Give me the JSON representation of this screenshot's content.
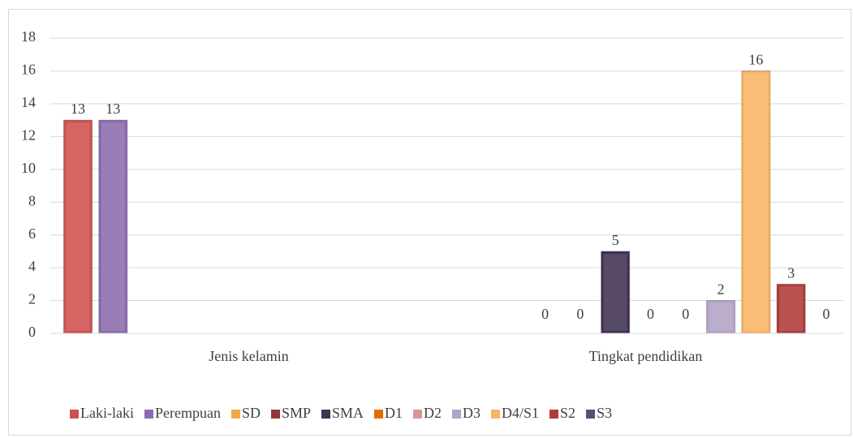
{
  "chart_data": {
    "type": "bar",
    "categories": [
      "Jenis kelamin",
      "Tingkat pendidikan"
    ],
    "series": [
      {
        "name": "Laki-laki",
        "color": "#d0504d",
        "values": [
          13,
          null
        ]
      },
      {
        "name": "Perempuan",
        "color": "#8a6bb0",
        "values": [
          13,
          null
        ]
      },
      {
        "name": "SD",
        "color": "#f5a64a",
        "values": [
          null,
          0
        ]
      },
      {
        "name": "SMP",
        "color": "#943634",
        "values": [
          null,
          0
        ]
      },
      {
        "name": "SMA",
        "color": "#3f3151",
        "values": [
          null,
          5
        ]
      },
      {
        "name": "D1",
        "color": "#e36c09",
        "values": [
          null,
          0
        ]
      },
      {
        "name": "D2",
        "color": "#d99694",
        "values": [
          null,
          0
        ]
      },
      {
        "name": "D3",
        "color": "#b3a2c7",
        "values": [
          null,
          2
        ]
      },
      {
        "name": "D4/S1",
        "color": "#f9b463",
        "values": [
          null,
          16
        ]
      },
      {
        "name": "S2",
        "color": "#b03c39",
        "values": [
          null,
          3
        ]
      },
      {
        "name": "S3",
        "color": "#604a7b",
        "values": [
          null,
          0
        ]
      }
    ],
    "ylim": [
      0,
      18
    ],
    "yticks": [
      0,
      2,
      4,
      6,
      8,
      10,
      12,
      14,
      16,
      18
    ],
    "grid": true,
    "legend": "bottom"
  }
}
